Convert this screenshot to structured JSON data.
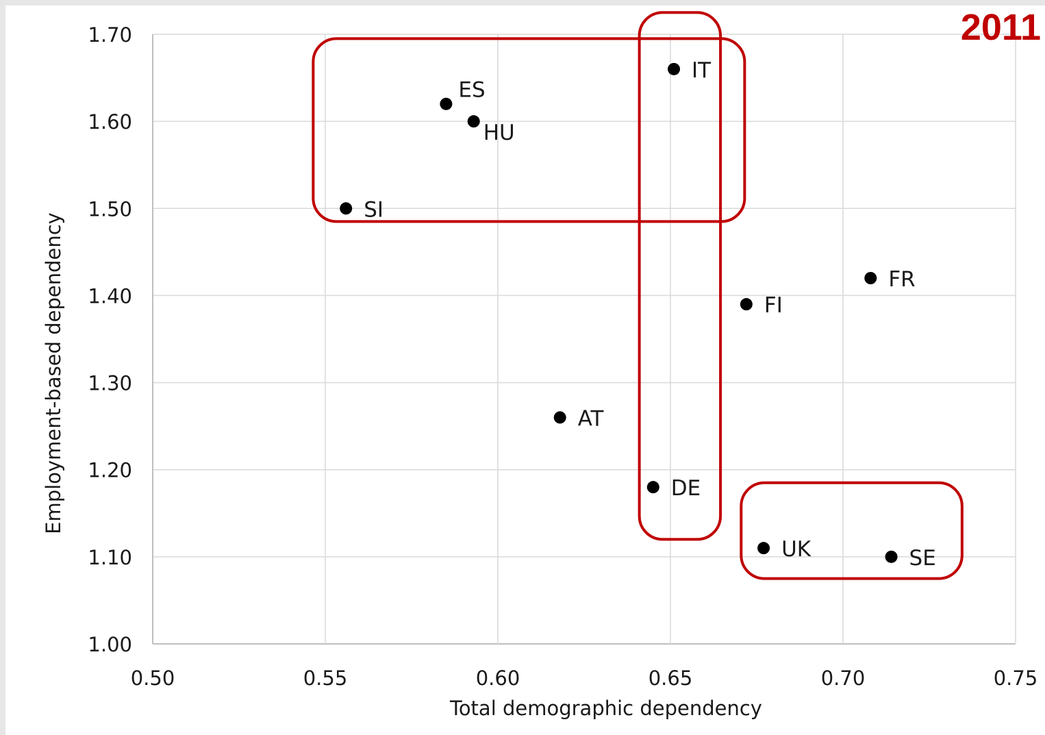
{
  "year_label": "2011",
  "colors": {
    "accent": "#c00000",
    "grid": "#d9d9d9",
    "axis": "#bfbfbf",
    "point": "#000000",
    "text": "#1a1a1a"
  },
  "chart_data": {
    "type": "scatter",
    "title": "",
    "xlabel": "Total demographic dependency",
    "ylabel": "Employment-based dependency",
    "xlim": [
      0.5,
      0.75
    ],
    "ylim": [
      1.0,
      1.7
    ],
    "xticks": [
      "0.50",
      "0.55",
      "0.60",
      "0.65",
      "0.70",
      "0.75"
    ],
    "yticks": [
      "1.00",
      "1.10",
      "1.20",
      "1.30",
      "1.40",
      "1.50",
      "1.60",
      "1.70"
    ],
    "grid": true,
    "legend": "none",
    "points": [
      {
        "label": "IT",
        "x": 0.651,
        "y": 1.66
      },
      {
        "label": "ES",
        "x": 0.585,
        "y": 1.62
      },
      {
        "label": "HU",
        "x": 0.593,
        "y": 1.6
      },
      {
        "label": "SI",
        "x": 0.556,
        "y": 1.5
      },
      {
        "label": "FR",
        "x": 0.708,
        "y": 1.42
      },
      {
        "label": "FI",
        "x": 0.672,
        "y": 1.39
      },
      {
        "label": "AT",
        "x": 0.618,
        "y": 1.26
      },
      {
        "label": "DE",
        "x": 0.645,
        "y": 1.18
      },
      {
        "label": "UK",
        "x": 0.677,
        "y": 1.11
      },
      {
        "label": "SE",
        "x": 0.714,
        "y": 1.1
      }
    ],
    "highlight_groups": [
      {
        "members": [
          "SI",
          "ES",
          "HU",
          "IT"
        ],
        "x_range": [
          0.5465,
          0.6715
        ],
        "y_range": [
          1.485,
          1.695
        ]
      },
      {
        "members": [
          "IT",
          "DE"
        ],
        "x_range": [
          0.641,
          0.6645
        ],
        "y_range": [
          1.12,
          1.725
        ]
      },
      {
        "members": [
          "UK",
          "SE"
        ],
        "x_range": [
          0.6705,
          0.7345
        ],
        "y_range": [
          1.075,
          1.185
        ]
      }
    ]
  }
}
